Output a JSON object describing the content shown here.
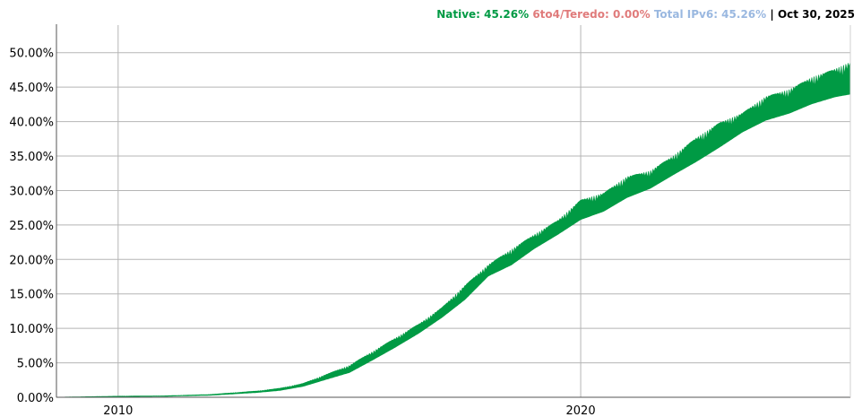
{
  "legend": {
    "native": "Native: 45.26%",
    "sixto4": "6to4/Teredo: 0.00%",
    "total": "Total IPv6: 45.26%",
    "separator": "|",
    "date": "Oct 30, 2025"
  },
  "colors": {
    "native": "#009a44",
    "sixto4": "#e07b7b",
    "total": "#9ab8e0",
    "date": "#000000",
    "grid": "#b5b5b5",
    "axis": "#555555"
  },
  "chart_data": {
    "type": "area",
    "title": "",
    "xlabel": "",
    "ylabel": "",
    "xlim": [
      "2008-09-01",
      "2025-10-30"
    ],
    "ylim": [
      0,
      54
    ],
    "yticks": [
      0,
      5,
      10,
      15,
      20,
      25,
      30,
      35,
      40,
      45,
      50
    ],
    "ytick_labels": [
      "0.00%",
      "5.00%",
      "10.00%",
      "15.00%",
      "20.00%",
      "25.00%",
      "30.00%",
      "35.00%",
      "40.00%",
      "45.00%",
      "50.00%"
    ],
    "xticks": [
      "2010-01-01",
      "2020-01-01"
    ],
    "xtick_labels": [
      "2010",
      "2020"
    ],
    "grid": true,
    "series": [
      {
        "name": "Native",
        "x": [
          "2008-09-01",
          "2010-01-01",
          "2011-01-01",
          "2012-01-01",
          "2013-01-01",
          "2013-07-01",
          "2014-01-01",
          "2014-07-01",
          "2015-01-01",
          "2015-07-01",
          "2016-01-01",
          "2016-07-01",
          "2017-01-01",
          "2017-07-01",
          "2018-01-01",
          "2018-07-01",
          "2019-01-01",
          "2019-07-01",
          "2020-01-01",
          "2020-07-01",
          "2021-01-01",
          "2021-07-01",
          "2022-01-01",
          "2022-07-01",
          "2023-01-01",
          "2023-07-01",
          "2024-01-01",
          "2024-07-01",
          "2025-01-01",
          "2025-07-01",
          "2025-10-30"
        ],
        "low": [
          0.0,
          0.1,
          0.15,
          0.3,
          0.7,
          1.0,
          1.6,
          2.6,
          3.6,
          5.4,
          7.3,
          9.3,
          11.6,
          14.2,
          17.6,
          19.2,
          21.6,
          23.6,
          25.8,
          27.0,
          29.0,
          30.3,
          32.3,
          34.2,
          36.3,
          38.5,
          40.2,
          41.2,
          42.6,
          43.6,
          44.0
        ],
        "high": [
          0.0,
          0.15,
          0.2,
          0.4,
          0.9,
          1.3,
          2.0,
          3.3,
          4.6,
          6.6,
          8.6,
          10.6,
          13.0,
          16.2,
          19.2,
          21.4,
          23.6,
          25.6,
          28.6,
          29.6,
          32.0,
          32.8,
          35.0,
          37.6,
          39.8,
          41.2,
          43.6,
          44.6,
          46.4,
          47.6,
          48.6
        ]
      },
      {
        "name": "6to4/Teredo",
        "x": [
          "2008-09-01",
          "2025-10-30"
        ],
        "low": [
          0.0,
          0.0
        ],
        "high": [
          0.0,
          0.0
        ]
      }
    ]
  }
}
